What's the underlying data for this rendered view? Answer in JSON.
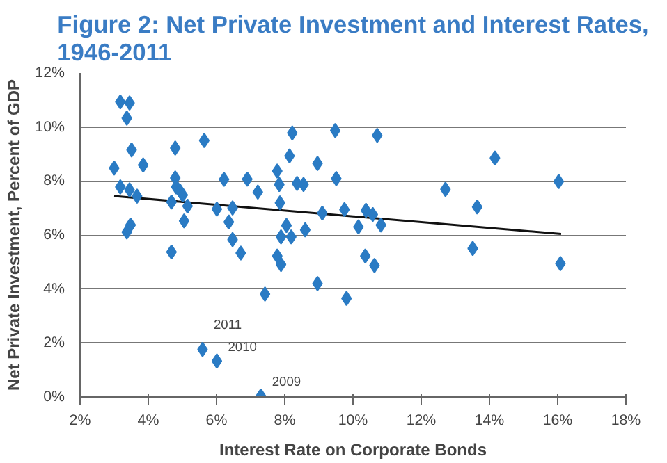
{
  "chart_data": {
    "type": "scatter",
    "title": "Figure 2: Net Private Investment and Interest Rates,\n1946-2011",
    "xlabel": "Interest Rate on Corporate Bonds",
    "ylabel": "Net Private Investment, Percent of GDP",
    "xlim": [
      2,
      18
    ],
    "xticks": [
      {
        "value": 2,
        "label": "2%"
      },
      {
        "value": 4,
        "label": "4%"
      },
      {
        "value": 6,
        "label": "6%"
      },
      {
        "value": 8,
        "label": "8%"
      },
      {
        "value": 10,
        "label": "10%"
      },
      {
        "value": 12,
        "label": "12%"
      },
      {
        "value": 14,
        "label": "14%"
      },
      {
        "value": 16,
        "label": "16%"
      },
      {
        "value": 18,
        "label": "18%"
      }
    ],
    "ylim": [
      0,
      12
    ],
    "yticks": [
      {
        "value": 0,
        "label": "0%"
      },
      {
        "value": 2,
        "label": "2%"
      },
      {
        "value": 4,
        "label": "4%"
      },
      {
        "value": 6,
        "label": "6%"
      },
      {
        "value": 8,
        "label": "8%"
      },
      {
        "value": 10,
        "label": "10%"
      },
      {
        "value": 12,
        "label": "12%"
      }
    ],
    "grid": "y",
    "series": [
      {
        "marker": "diamond",
        "color": "#2a7bc4",
        "x": [
          3.18,
          3.45,
          3.37,
          3.0,
          3.51,
          3.85,
          3.18,
          3.45,
          3.67,
          3.48,
          3.37,
          4.68,
          4.79,
          5.64,
          4.79,
          4.82,
          4.93,
          5.01,
          4.68,
          5.15,
          5.05,
          6.22,
          6.01,
          6.47,
          6.36,
          6.47,
          6.71,
          6.9,
          7.21,
          7.42,
          5.59,
          6.01,
          7.3,
          7.78,
          7.84,
          7.86,
          7.89,
          7.78,
          7.89,
          8.22,
          9.48,
          10.71,
          8.14,
          8.96,
          8.36,
          8.55,
          9.51,
          12.71,
          9.1,
          9.75,
          10.38,
          10.58,
          8.05,
          10.16,
          10.82,
          8.19,
          8.6,
          10.36,
          10.63,
          8.96,
          9.81,
          14.16,
          16.03,
          13.64,
          13.51,
          16.08
        ],
        "values": [
          10.93,
          10.89,
          10.33,
          8.48,
          9.15,
          8.59,
          7.78,
          7.67,
          7.44,
          6.37,
          6.11,
          5.37,
          9.22,
          9.5,
          8.11,
          7.78,
          7.63,
          7.48,
          7.22,
          7.07,
          6.52,
          8.06,
          6.96,
          7.0,
          6.48,
          5.83,
          5.33,
          8.07,
          7.59,
          3.81,
          1.76,
          1.33,
          0.04,
          8.37,
          7.87,
          7.19,
          5.93,
          5.22,
          4.91,
          9.78,
          9.87,
          9.69,
          8.93,
          8.65,
          7.91,
          7.87,
          8.09,
          7.69,
          6.81,
          6.94,
          6.91,
          6.76,
          6.35,
          6.3,
          6.37,
          5.93,
          6.19,
          5.22,
          4.87,
          4.2,
          3.65,
          8.85,
          7.98,
          7.04,
          5.5,
          4.94
        ]
      },
      {
        "type": "line",
        "color": "#111111",
        "x": [
          3.0,
          16.1
        ],
        "values": [
          7.44,
          6.04
        ]
      }
    ],
    "annotations": [
      {
        "text": "2011",
        "x": 5.59,
        "y": 1.76
      },
      {
        "text": "2010",
        "x": 6.01,
        "y": 1.33
      },
      {
        "text": "2009",
        "x": 7.3,
        "y": 0.04
      }
    ]
  }
}
